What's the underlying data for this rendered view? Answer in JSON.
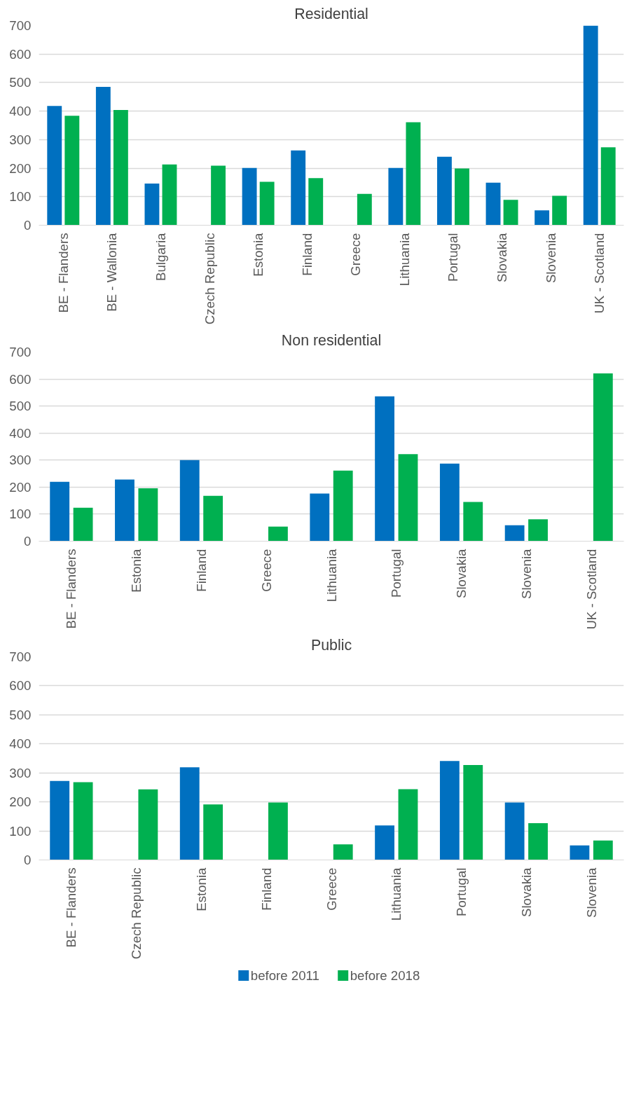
{
  "chart_data": [
    {
      "type": "bar",
      "title": "Residential",
      "categories": [
        "BE - Flanders",
        "BE - Wallonia",
        "Bulgaria",
        "Czech Republic",
        "Estonia",
        "Finland",
        "Greece",
        "Lithuania",
        "Portugal",
        "Slovakia",
        "Slovenia",
        "UK - Scotland"
      ],
      "series": [
        {
          "color": "#0070c0",
          "values": [
            418,
            485,
            146,
            null,
            201,
            262,
            null,
            201,
            240,
            149,
            52,
            700
          ]
        },
        {
          "color": "#00b050",
          "values": [
            384,
            404,
            213,
            209,
            152,
            165,
            110,
            361,
            199,
            89,
            103,
            273
          ]
        }
      ],
      "ylim": [
        0,
        700
      ],
      "yticks": [
        0,
        100,
        200,
        300,
        400,
        500,
        600,
        700
      ],
      "grid": "y"
    },
    {
      "type": "bar",
      "title": "Non residential",
      "categories": [
        "BE - Flanders",
        "Estonia",
        "Finland",
        "Greece",
        "Lithuania",
        "Portugal",
        "Slovakia",
        "Slovenia",
        "UK - Scotland"
      ],
      "series": [
        {
          "color": "#0070c0",
          "values": [
            220,
            228,
            300,
            null,
            176,
            536,
            287,
            59,
            null
          ]
        },
        {
          "color": "#00b050",
          "values": [
            124,
            196,
            168,
            54,
            261,
            322,
            145,
            81,
            621
          ]
        }
      ],
      "ylim": [
        0,
        700
      ],
      "yticks": [
        0,
        100,
        200,
        300,
        400,
        500,
        600,
        700
      ],
      "grid": "y"
    },
    {
      "type": "bar",
      "title": "Public",
      "categories": [
        "BE - Flanders",
        "Czech Republic",
        "Estonia",
        "Finland",
        "Greece",
        "Lithuania",
        "Portugal",
        "Slovakia",
        "Slovenia"
      ],
      "series": [
        {
          "name": "before 2011",
          "color": "#0070c0",
          "values": [
            272,
            null,
            319,
            null,
            null,
            119,
            341,
            198,
            50
          ]
        },
        {
          "name": "before 2018",
          "color": "#00b050",
          "values": [
            268,
            243,
            191,
            198,
            54,
            244,
            327,
            127,
            67
          ]
        }
      ],
      "ylim": [
        0,
        700
      ],
      "yticks": [
        0,
        100,
        200,
        300,
        400,
        500,
        600,
        700
      ],
      "grid": "y",
      "legend": "bottom"
    }
  ]
}
